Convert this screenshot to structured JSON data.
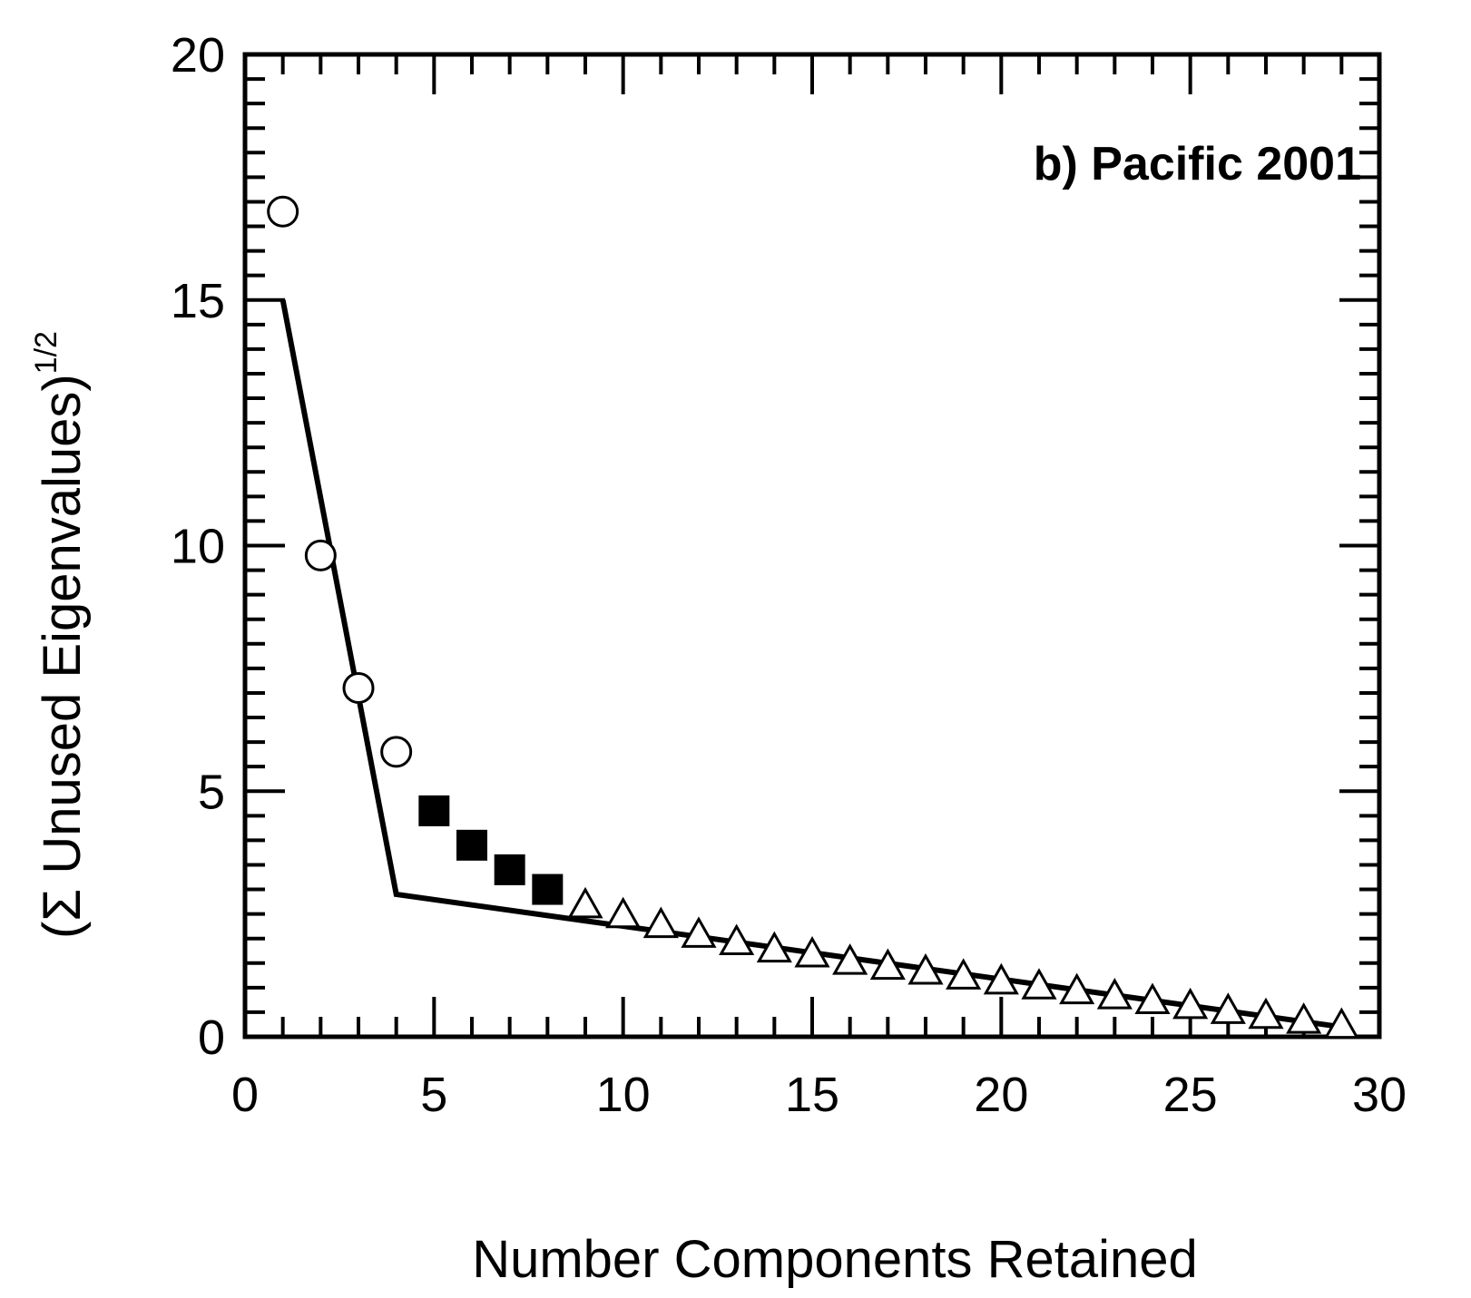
{
  "chart_data": {
    "type": "scatter",
    "title": "",
    "annotation": "b) Pacific 2001",
    "xlabel": "Number Components Retained",
    "ylabel": {
      "main": "(Σ Unused Eigenvalues)",
      "superscript": "1/2"
    },
    "xlim": [
      0,
      30
    ],
    "ylim": [
      0,
      20
    ],
    "xticks": [
      "0",
      "5",
      "10",
      "15",
      "20",
      "25",
      "30"
    ],
    "yticks": [
      "0",
      "5",
      "10",
      "15",
      "20"
    ],
    "grid": false,
    "series": [
      {
        "marker": "open-circle",
        "x": [
          1,
          2,
          3,
          4
        ],
        "y": [
          16.8,
          9.8,
          7.1,
          5.8
        ]
      },
      {
        "marker": "filled-square",
        "x": [
          5,
          6,
          7,
          8
        ],
        "y": [
          4.6,
          3.9,
          3.4,
          3.0
        ]
      },
      {
        "marker": "open-triangle",
        "x": [
          9,
          10,
          11,
          12,
          13,
          14,
          15,
          16,
          17,
          18,
          19,
          20,
          21,
          22,
          23,
          24,
          25,
          26,
          27,
          28,
          29
        ],
        "y": [
          2.65,
          2.45,
          2.25,
          2.05,
          1.9,
          1.75,
          1.65,
          1.5,
          1.4,
          1.3,
          1.2,
          1.1,
          1.0,
          0.9,
          0.8,
          0.7,
          0.6,
          0.5,
          0.4,
          0.3,
          0.2
        ]
      },
      {
        "marker": "line",
        "x": [
          1,
          4,
          29
        ],
        "y": [
          15.0,
          2.9,
          0.2
        ]
      }
    ]
  }
}
